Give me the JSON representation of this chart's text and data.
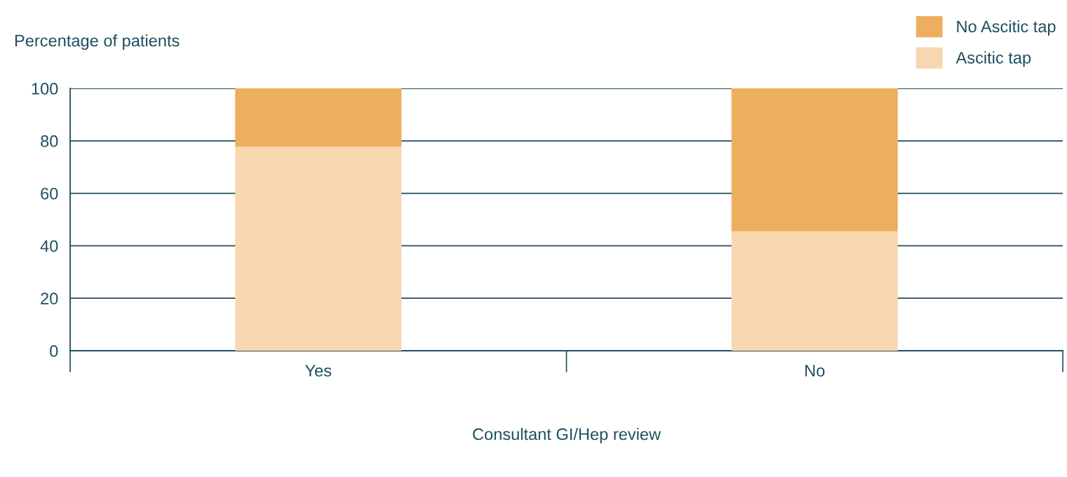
{
  "chart_data": {
    "type": "bar",
    "stacked": true,
    "xlabel": "Consultant GI/Hep review",
    "ylabel": "Percentage of patients",
    "categories": [
      "Yes",
      "No"
    ],
    "series": [
      {
        "name": "Ascitic tap",
        "color": "#f7d7b0",
        "values": [
          77.8,
          45.5
        ]
      },
      {
        "name": "No Ascitic tap",
        "color": "#edae5e",
        "values": [
          22.2,
          54.5
        ]
      }
    ],
    "ylim": [
      0,
      100
    ],
    "yticks": [
      0,
      20,
      40,
      60,
      80,
      100
    ],
    "grid": "y",
    "legend": "top right"
  }
}
